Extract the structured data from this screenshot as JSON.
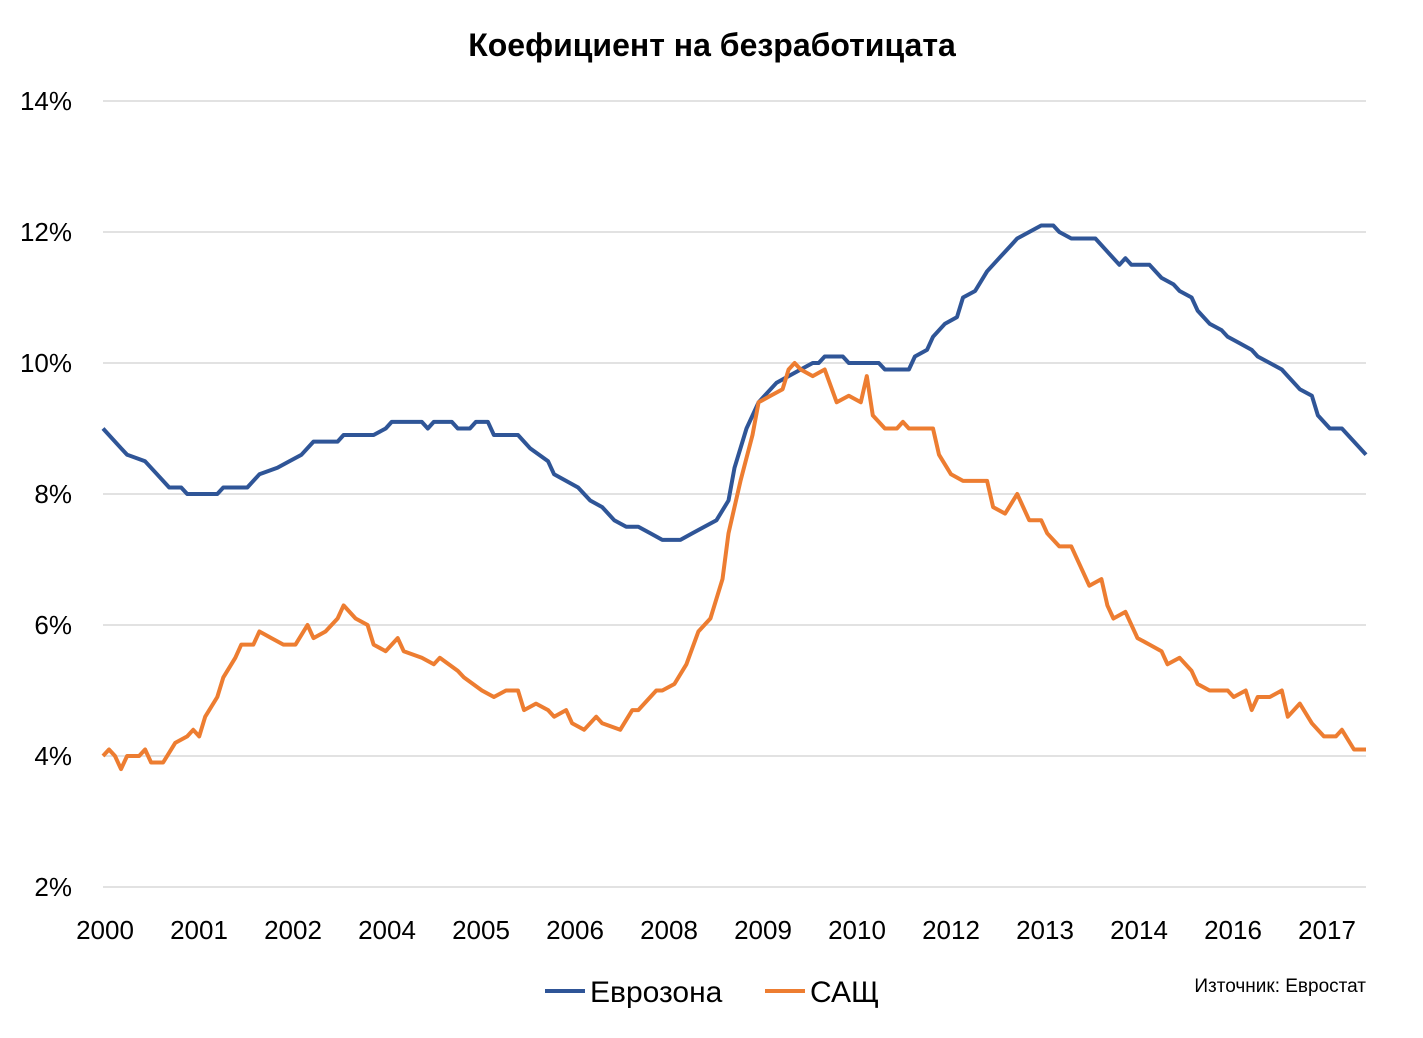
{
  "chart_data": {
    "type": "line",
    "title": "Коефициент  на  безработицата",
    "xlabel": "",
    "ylabel": "",
    "x_unit": "month index from January 2000",
    "x_range": [
      0,
      210
    ],
    "x_tick_labels": [
      "2000",
      "2001",
      "2002",
      "2004",
      "2005",
      "2006",
      "2008",
      "2009",
      "2010",
      "2012",
      "2013",
      "2014",
      "2016",
      "2017"
    ],
    "y_ticks": [
      2,
      4,
      6,
      8,
      10,
      12,
      14
    ],
    "y_tick_labels": [
      "2%",
      "4%",
      "6%",
      "8%",
      "10%",
      "12%",
      "14%"
    ],
    "ylim": [
      2,
      14
    ],
    "grid": "horizontal",
    "legend_position": "bottom",
    "source": "Източник: Евростат",
    "series": [
      {
        "name": "Еврозона",
        "color": "#2F5597",
        "points": [
          [
            0,
            9.0
          ],
          [
            3,
            8.7
          ],
          [
            4,
            8.6
          ],
          [
            7,
            8.5
          ],
          [
            9,
            8.3
          ],
          [
            11,
            8.1
          ],
          [
            13,
            8.1
          ],
          [
            14,
            8.0
          ],
          [
            19,
            8.0
          ],
          [
            20,
            8.1
          ],
          [
            24,
            8.1
          ],
          [
            26,
            8.3
          ],
          [
            29,
            8.4
          ],
          [
            31,
            8.5
          ],
          [
            33,
            8.6
          ],
          [
            35,
            8.8
          ],
          [
            39,
            8.8
          ],
          [
            40,
            8.9
          ],
          [
            45,
            8.9
          ],
          [
            47,
            9.0
          ],
          [
            48,
            9.1
          ],
          [
            53,
            9.1
          ],
          [
            54,
            9.0
          ],
          [
            55,
            9.1
          ],
          [
            58,
            9.1
          ],
          [
            59,
            9.0
          ],
          [
            61,
            9.0
          ],
          [
            62,
            9.1
          ],
          [
            64,
            9.1
          ],
          [
            65,
            8.9
          ],
          [
            69,
            8.9
          ],
          [
            71,
            8.7
          ],
          [
            74,
            8.5
          ],
          [
            75,
            8.3
          ],
          [
            77,
            8.2
          ],
          [
            79,
            8.1
          ],
          [
            81,
            7.9
          ],
          [
            83,
            7.8
          ],
          [
            85,
            7.6
          ],
          [
            87,
            7.5
          ],
          [
            89,
            7.5
          ],
          [
            91,
            7.4
          ],
          [
            93,
            7.3
          ],
          [
            96,
            7.3
          ],
          [
            98,
            7.4
          ],
          [
            100,
            7.5
          ],
          [
            102,
            7.6
          ],
          [
            104,
            7.9
          ],
          [
            105,
            8.4
          ],
          [
            107,
            9.0
          ],
          [
            109,
            9.4
          ],
          [
            112,
            9.7
          ],
          [
            114,
            9.8
          ],
          [
            116,
            9.9
          ],
          [
            118,
            10.0
          ],
          [
            119,
            10.0
          ],
          [
            120,
            10.1
          ],
          [
            123,
            10.1
          ],
          [
            124,
            10.0
          ],
          [
            129,
            10.0
          ],
          [
            130,
            9.9
          ],
          [
            134,
            9.9
          ],
          [
            135,
            10.1
          ],
          [
            137,
            10.2
          ],
          [
            138,
            10.4
          ],
          [
            140,
            10.6
          ],
          [
            142,
            10.7
          ],
          [
            143,
            11.0
          ],
          [
            145,
            11.1
          ],
          [
            147,
            11.4
          ],
          [
            149,
            11.6
          ],
          [
            151,
            11.8
          ],
          [
            152,
            11.9
          ],
          [
            154,
            12.0
          ],
          [
            156,
            12.1
          ],
          [
            158,
            12.1
          ],
          [
            159,
            12.0
          ],
          [
            161,
            11.9
          ],
          [
            165,
            11.9
          ],
          [
            167,
            11.7
          ],
          [
            169,
            11.5
          ],
          [
            170,
            11.6
          ],
          [
            171,
            11.5
          ],
          [
            174,
            11.5
          ],
          [
            176,
            11.3
          ],
          [
            178,
            11.2
          ],
          [
            179,
            11.1
          ],
          [
            181,
            11.0
          ],
          [
            182,
            10.8
          ],
          [
            184,
            10.6
          ],
          [
            186,
            10.5
          ],
          [
            187,
            10.4
          ],
          [
            189,
            10.3
          ],
          [
            191,
            10.2
          ],
          [
            192,
            10.1
          ],
          [
            194,
            10.0
          ],
          [
            196,
            9.9
          ],
          [
            197,
            9.8
          ],
          [
            199,
            9.6
          ],
          [
            201,
            9.5
          ],
          [
            202,
            9.2
          ],
          [
            204,
            9.0
          ],
          [
            206,
            9.0
          ],
          [
            210,
            8.6
          ]
        ]
      },
      {
        "name": "САЩ",
        "color": "#ED7D31",
        "points": [
          [
            0,
            4.0
          ],
          [
            1,
            4.1
          ],
          [
            2,
            4.0
          ],
          [
            3,
            3.8
          ],
          [
            4,
            4.0
          ],
          [
            6,
            4.0
          ],
          [
            7,
            4.1
          ],
          [
            8,
            3.9
          ],
          [
            10,
            3.9
          ],
          [
            12,
            4.2
          ],
          [
            14,
            4.3
          ],
          [
            15,
            4.4
          ],
          [
            16,
            4.3
          ],
          [
            17,
            4.6
          ],
          [
            19,
            4.9
          ],
          [
            20,
            5.2
          ],
          [
            22,
            5.5
          ],
          [
            23,
            5.7
          ],
          [
            25,
            5.7
          ],
          [
            26,
            5.9
          ],
          [
            28,
            5.8
          ],
          [
            30,
            5.7
          ],
          [
            32,
            5.7
          ],
          [
            34,
            6.0
          ],
          [
            35,
            5.8
          ],
          [
            37,
            5.9
          ],
          [
            39,
            6.1
          ],
          [
            40,
            6.3
          ],
          [
            42,
            6.1
          ],
          [
            44,
            6.0
          ],
          [
            45,
            5.7
          ],
          [
            47,
            5.6
          ],
          [
            49,
            5.8
          ],
          [
            50,
            5.6
          ],
          [
            53,
            5.5
          ],
          [
            55,
            5.4
          ],
          [
            56,
            5.5
          ],
          [
            59,
            5.3
          ],
          [
            60,
            5.2
          ],
          [
            63,
            5.0
          ],
          [
            65,
            4.9
          ],
          [
            67,
            5.0
          ],
          [
            69,
            5.0
          ],
          [
            70,
            4.7
          ],
          [
            72,
            4.8
          ],
          [
            74,
            4.7
          ],
          [
            75,
            4.6
          ],
          [
            77,
            4.7
          ],
          [
            78,
            4.5
          ],
          [
            80,
            4.4
          ],
          [
            82,
            4.6
          ],
          [
            83,
            4.5
          ],
          [
            86,
            4.4
          ],
          [
            88,
            4.7
          ],
          [
            89,
            4.7
          ],
          [
            92,
            5.0
          ],
          [
            93,
            5.0
          ],
          [
            95,
            5.1
          ],
          [
            97,
            5.4
          ],
          [
            99,
            5.9
          ],
          [
            101,
            6.1
          ],
          [
            103,
            6.7
          ],
          [
            104,
            7.4
          ],
          [
            106,
            8.2
          ],
          [
            108,
            8.9
          ],
          [
            109,
            9.4
          ],
          [
            111,
            9.5
          ],
          [
            113,
            9.6
          ],
          [
            114,
            9.9
          ],
          [
            115,
            10.0
          ],
          [
            116,
            9.9
          ],
          [
            118,
            9.8
          ],
          [
            120,
            9.9
          ],
          [
            122,
            9.4
          ],
          [
            124,
            9.5
          ],
          [
            126,
            9.4
          ],
          [
            127,
            9.8
          ],
          [
            128,
            9.2
          ],
          [
            130,
            9.0
          ],
          [
            132,
            9.0
          ],
          [
            133,
            9.1
          ],
          [
            134,
            9.0
          ],
          [
            138,
            9.0
          ],
          [
            139,
            8.6
          ],
          [
            141,
            8.3
          ],
          [
            143,
            8.2
          ],
          [
            147,
            8.2
          ],
          [
            148,
            7.8
          ],
          [
            150,
            7.7
          ],
          [
            152,
            8.0
          ],
          [
            154,
            7.6
          ],
          [
            156,
            7.6
          ],
          [
            157,
            7.4
          ],
          [
            159,
            7.2
          ],
          [
            161,
            7.2
          ],
          [
            163,
            6.8
          ],
          [
            164,
            6.6
          ],
          [
            166,
            6.7
          ],
          [
            167,
            6.3
          ],
          [
            168,
            6.1
          ],
          [
            170,
            6.2
          ],
          [
            172,
            5.8
          ],
          [
            174,
            5.7
          ],
          [
            176,
            5.6
          ],
          [
            177,
            5.4
          ],
          [
            179,
            5.5
          ],
          [
            181,
            5.3
          ],
          [
            182,
            5.1
          ],
          [
            184,
            5.0
          ],
          [
            187,
            5.0
          ],
          [
            188,
            4.9
          ],
          [
            190,
            5.0
          ],
          [
            191,
            4.7
          ],
          [
            192,
            4.9
          ],
          [
            194,
            4.9
          ],
          [
            196,
            5.0
          ],
          [
            197,
            4.6
          ],
          [
            199,
            4.8
          ],
          [
            201,
            4.5
          ],
          [
            203,
            4.3
          ],
          [
            205,
            4.3
          ],
          [
            206,
            4.4
          ],
          [
            208,
            4.1
          ],
          [
            210,
            4.1
          ]
        ]
      }
    ]
  }
}
